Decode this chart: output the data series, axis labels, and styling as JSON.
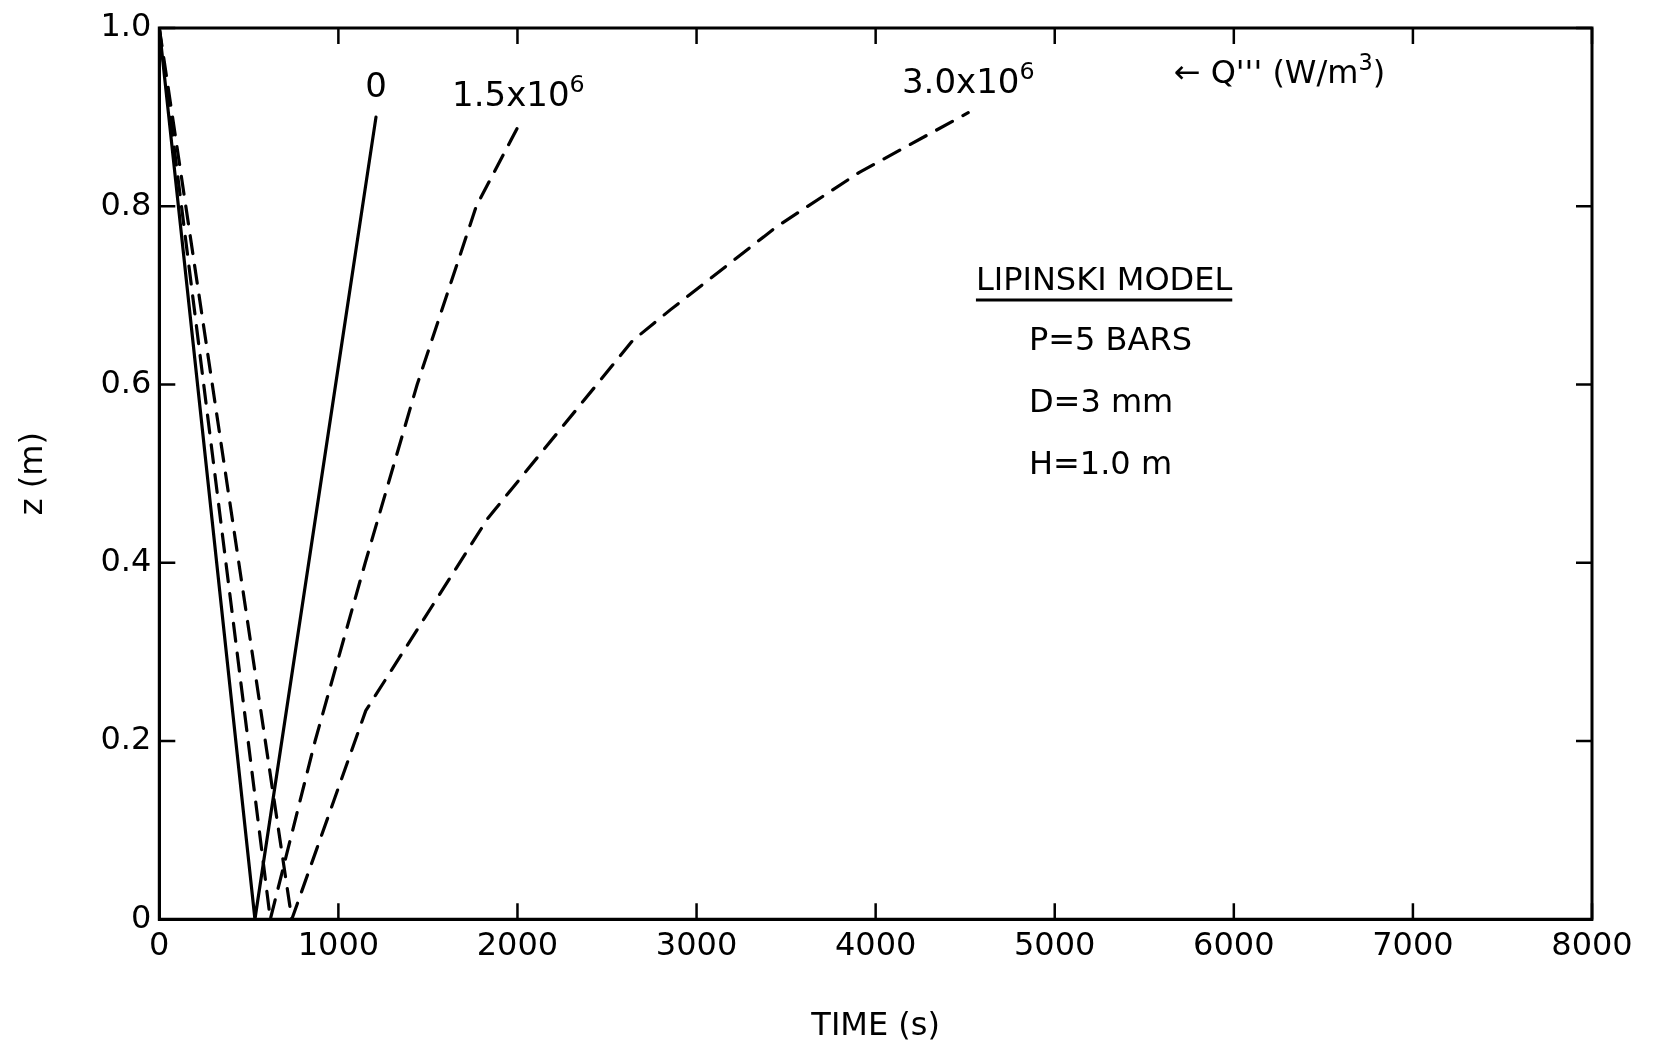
{
  "chart_data": {
    "type": "line",
    "xlabel": "TIME (s)",
    "ylabel": "z (m)",
    "xlim": [
      0,
      8000
    ],
    "xticks": [
      0,
      1000,
      2000,
      3000,
      4000,
      5000,
      6000,
      7000,
      8000
    ],
    "ylim": [
      0,
      1
    ],
    "yticks": [
      0,
      0.2,
      0.4,
      0.6,
      0.8,
      {
        "value": 1,
        "label": "1.0"
      }
    ],
    "grid": false,
    "legend": false,
    "marker": "none",
    "series": [
      {
        "color": "#000000",
        "line_style": "solid",
        "x": [
          0,
          534,
          1210
        ],
        "values": [
          1,
          0,
          0.9
        ]
      },
      {
        "color": "#000000",
        "line_style": "dashed",
        "x": [
          0,
          620,
          870,
          1150,
          1440,
          1770,
          2005
        ],
        "values": [
          1,
          0,
          0.2,
          0.4,
          0.6,
          0.8,
          0.89
        ]
      },
      {
        "color": "#000000",
        "line_style": "dashed",
        "x": [
          0,
          740,
          1153,
          1835,
          2642,
          2855,
          3447,
          3909,
          4517
        ],
        "values": [
          1,
          0,
          0.234,
          0.45,
          0.649,
          0.684,
          0.777,
          0.838,
          0.905
        ]
      }
    ],
    "annotations": [
      "← Q''' (W/m$^{3}$)",
      "LIPINSKI MODEL",
      "P=5 BARS",
      "D=3 mm",
      "H=1.0 m",
      {
        "text": "0",
        "x": 1210,
        "y": 0.9
      },
      {
        "text": "1.5x10$^{6}$",
        "x": 2005,
        "y": 0.89
      },
      {
        "text": "3.0x10$^{6}$",
        "x": 4517,
        "y": 0.905
      }
    ]
  }
}
